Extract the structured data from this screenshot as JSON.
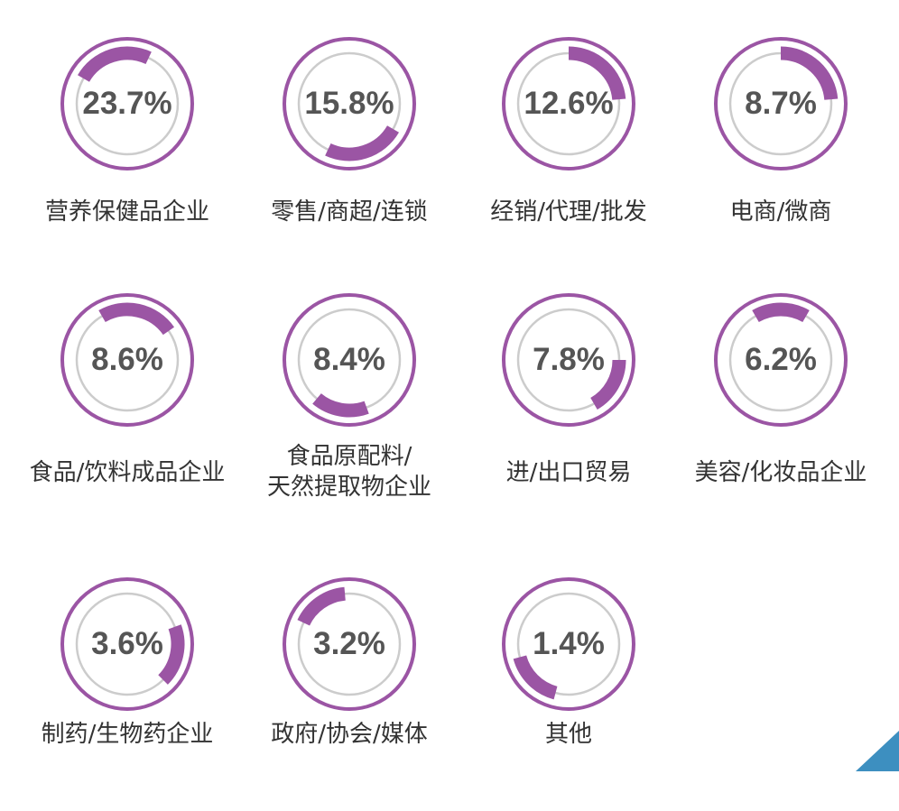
{
  "colors": {
    "accent": "#9b55a4",
    "track": "#cccccc",
    "text": "#555555",
    "label": "#333333",
    "corner": "#3d8fc0"
  },
  "chart_data": {
    "type": "donut-grid",
    "unit": "%",
    "categories": [
      {
        "label": "营养保健品企业",
        "value": 23.7,
        "display": "23.7%",
        "arc_start_deg": -60,
        "arc_sweep_deg": 85
      },
      {
        "label": "零售/商超/连锁",
        "value": 15.8,
        "display": "15.8%",
        "arc_start_deg": 120,
        "arc_sweep_deg": 85
      },
      {
        "label": "经销/代理/批发",
        "value": 12.6,
        "display": "12.6%",
        "arc_start_deg": 0,
        "arc_sweep_deg": 85
      },
      {
        "label": "电商/微商",
        "value": 8.7,
        "display": "8.7%",
        "arc_start_deg": 0,
        "arc_sweep_deg": 85
      },
      {
        "label": "食品/饮料成品企业",
        "value": 8.6,
        "display": "8.6%",
        "arc_start_deg": -30,
        "arc_sweep_deg": 85
      },
      {
        "label": "食品原配料/\n天然提取物企业",
        "value": 8.4,
        "display": "8.4%",
        "arc_start_deg": 160,
        "arc_sweep_deg": 60
      },
      {
        "label": "进/出口贸易",
        "value": 7.8,
        "display": "7.8%",
        "arc_start_deg": 90,
        "arc_sweep_deg": 60
      },
      {
        "label": "美容/化妆品企业",
        "value": 6.2,
        "display": "6.2%",
        "arc_start_deg": -30,
        "arc_sweep_deg": 60
      },
      {
        "label": "制药/生物药企业",
        "value": 3.6,
        "display": "3.6%",
        "arc_start_deg": 70,
        "arc_sweep_deg": 65
      },
      {
        "label": "政府/协会/媒体",
        "value": 3.2,
        "display": "3.2%",
        "arc_start_deg": -65,
        "arc_sweep_deg": 60
      },
      {
        "label": "其他",
        "value": 1.4,
        "display": "1.4%",
        "arc_start_deg": 195,
        "arc_sweep_deg": 60
      }
    ]
  }
}
